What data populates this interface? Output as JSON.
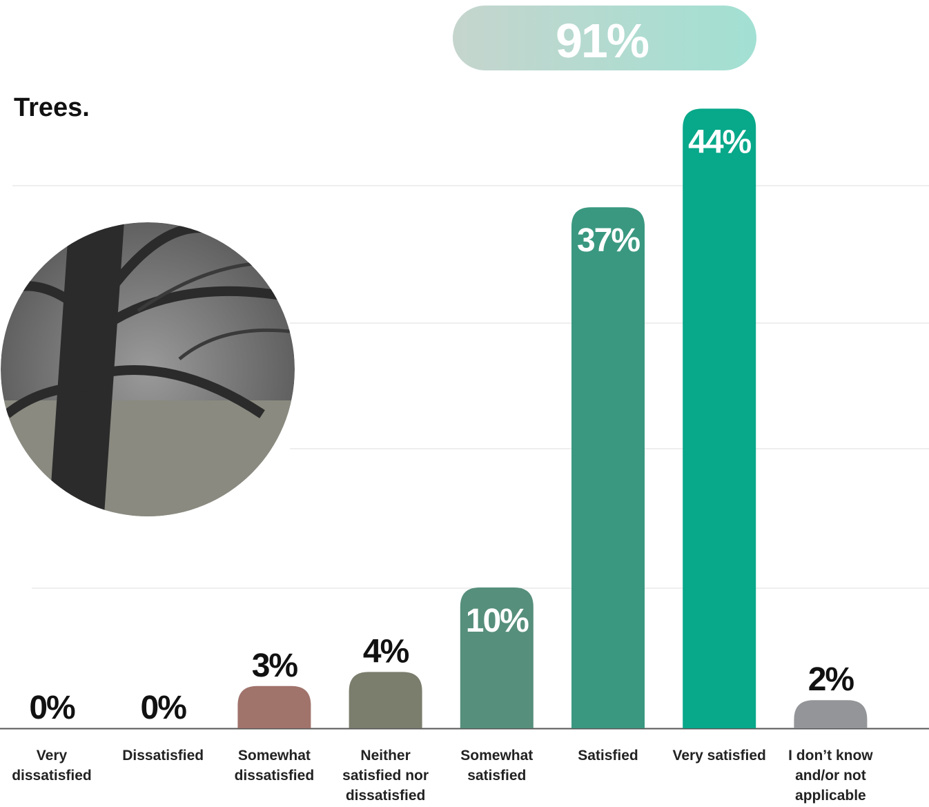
{
  "chart_data": {
    "type": "bar",
    "title": "Trees.",
    "annotation": "91%",
    "categories": [
      "Very dissatisfied",
      "Dissatisfied",
      "Somewhat dissatisfied",
      "Neither satisfied nor dissatisfied",
      "Somewhat satisfied",
      "Satisfied",
      "Very satisfied",
      "I don’t know and/or not applicable"
    ],
    "values": [
      0,
      0,
      3,
      4,
      10,
      37,
      44,
      2
    ],
    "value_labels": [
      "0%",
      "0%",
      "3%",
      "4%",
      "10%",
      "37%",
      "44%",
      "2%"
    ],
    "colors": [
      "#a0736b",
      "#a0736b",
      "#a0736b",
      "#7b7d6d",
      "#568f7b",
      "#3a9880",
      "#08a88a",
      "#939598"
    ],
    "ylim": [
      0,
      45
    ]
  }
}
